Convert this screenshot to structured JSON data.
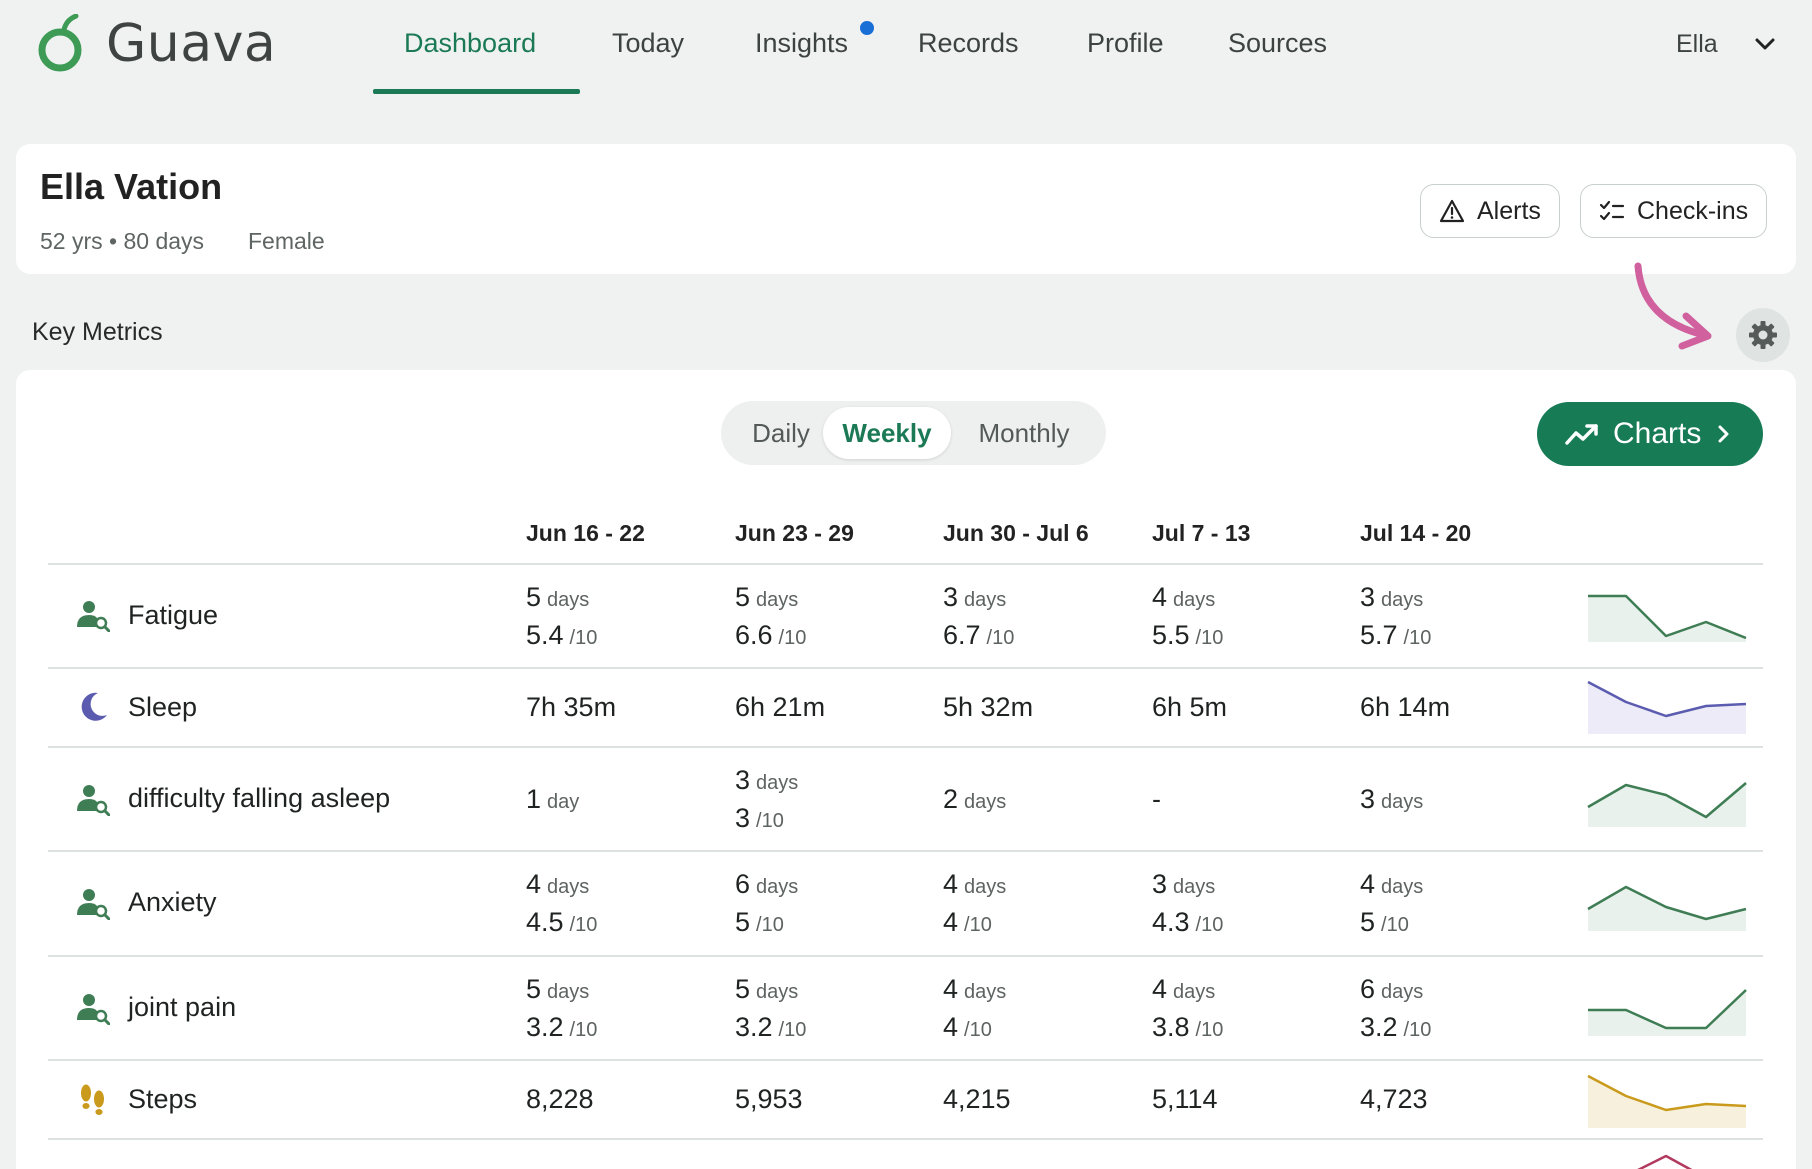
{
  "brand": {
    "name": "Guava"
  },
  "nav": {
    "tabs": [
      "Dashboard",
      "Today",
      "Insights",
      "Records",
      "Profile",
      "Sources"
    ],
    "active": "Dashboard",
    "user": "Ella"
  },
  "patient": {
    "name": "Ella Vation",
    "age": "52 yrs • 80 days",
    "sex": "Female"
  },
  "actions": {
    "alerts": "Alerts",
    "checkins": "Check-ins"
  },
  "section": {
    "title": "Key Metrics"
  },
  "period": {
    "options": [
      "Daily",
      "Weekly",
      "Monthly"
    ],
    "selected": "Weekly"
  },
  "charts_button": "Charts",
  "weeks": [
    "Jun 16 - 22",
    "Jun 23 - 29",
    "Jun 30 - Jul 6",
    "Jul 7 - 13",
    "Jul 14 - 20"
  ],
  "metrics": [
    {
      "name": "Fatigue",
      "icon": "person-search-icon",
      "cells": [
        {
          "top": "5",
          "top_unit": "days",
          "bottom": "5.4",
          "bottom_unit": "/10"
        },
        {
          "top": "5",
          "top_unit": "days",
          "bottom": "6.6",
          "bottom_unit": "/10"
        },
        {
          "top": "3",
          "top_unit": "days",
          "bottom": "6.7",
          "bottom_unit": "/10"
        },
        {
          "top": "4",
          "top_unit": "days",
          "bottom": "5.5",
          "bottom_unit": "/10"
        },
        {
          "top": "3",
          "top_unit": "days",
          "bottom": "5.7",
          "bottom_unit": "/10"
        }
      ]
    },
    {
      "name": "Sleep",
      "icon": "moon-icon",
      "cells": [
        {
          "top": "7h 35m"
        },
        {
          "top": "6h 21m"
        },
        {
          "top": "5h 32m"
        },
        {
          "top": "6h 5m"
        },
        {
          "top": "6h 14m"
        }
      ]
    },
    {
      "name": "difficulty falling asleep",
      "icon": "person-search-icon",
      "cells": [
        {
          "top": "1",
          "top_unit": "day"
        },
        {
          "top": "3",
          "top_unit": "days",
          "bottom": "3",
          "bottom_unit": "/10"
        },
        {
          "top": "2",
          "top_unit": "days"
        },
        {
          "top": "-"
        },
        {
          "top": "3",
          "top_unit": "days"
        }
      ]
    },
    {
      "name": "Anxiety",
      "icon": "person-search-icon",
      "cells": [
        {
          "top": "4",
          "top_unit": "days",
          "bottom": "4.5",
          "bottom_unit": "/10"
        },
        {
          "top": "6",
          "top_unit": "days",
          "bottom": "5",
          "bottom_unit": "/10"
        },
        {
          "top": "4",
          "top_unit": "days",
          "bottom": "4",
          "bottom_unit": "/10"
        },
        {
          "top": "3",
          "top_unit": "days",
          "bottom": "4.3",
          "bottom_unit": "/10"
        },
        {
          "top": "4",
          "top_unit": "days",
          "bottom": "5",
          "bottom_unit": "/10"
        }
      ]
    },
    {
      "name": "joint pain",
      "icon": "person-search-icon",
      "cells": [
        {
          "top": "5",
          "top_unit": "days",
          "bottom": "3.2",
          "bottom_unit": "/10"
        },
        {
          "top": "5",
          "top_unit": "days",
          "bottom": "3.2",
          "bottom_unit": "/10"
        },
        {
          "top": "4",
          "top_unit": "days",
          "bottom": "4",
          "bottom_unit": "/10"
        },
        {
          "top": "4",
          "top_unit": "days",
          "bottom": "3.8",
          "bottom_unit": "/10"
        },
        {
          "top": "6",
          "top_unit": "days",
          "bottom": "3.2",
          "bottom_unit": "/10"
        }
      ]
    },
    {
      "name": "Steps",
      "icon": "footprints-icon",
      "cells": [
        {
          "top": "8,228"
        },
        {
          "top": "5,953"
        },
        {
          "top": "4,215"
        },
        {
          "top": "5,114"
        },
        {
          "top": "4,723"
        }
      ]
    }
  ],
  "colors": {
    "brand_green": "#177b56",
    "symptom_green": "#3f7d55",
    "sleep_purple": "#5b5cb0",
    "steps_gold": "#c99a1b",
    "hint_pink": "#d0609e",
    "notification_blue": "#1a6fd6"
  }
}
